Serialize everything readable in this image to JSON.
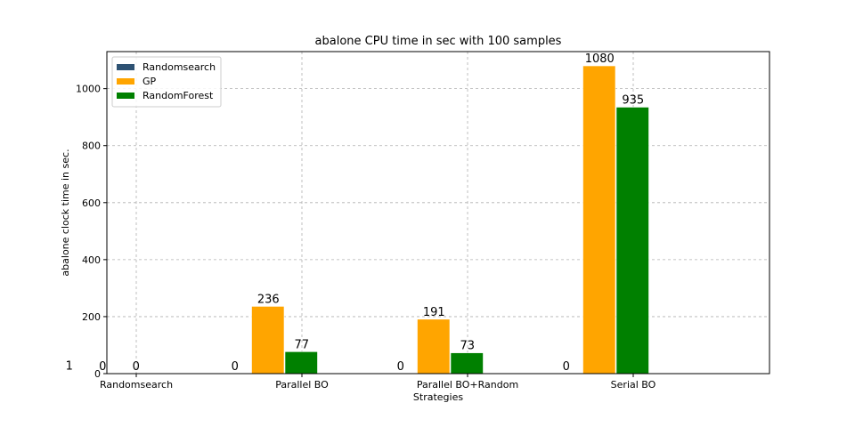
{
  "chart_data": {
    "type": "bar",
    "title": "abalone CPU time in sec with 100 samples",
    "xlabel": "Strategies",
    "ylabel": "abalone clock time in sec.",
    "ylim": [
      0,
      1130
    ],
    "yticks": [
      0,
      200,
      400,
      600,
      800,
      1000
    ],
    "grid": true,
    "legend_position": "top-left",
    "categories": [
      "Randomsearch",
      "Parallel BO",
      "Parallel BO+Random",
      "Serial BO"
    ],
    "series": [
      {
        "name": "Randomsearch",
        "color": "#2e5273",
        "values": [
          1,
          0,
          0,
          0
        ],
        "labels": [
          "1",
          "0",
          "0",
          "0"
        ]
      },
      {
        "name": "GP",
        "color": "#ffa500",
        "values": [
          0,
          236,
          191,
          1080
        ],
        "labels": [
          "0",
          "236",
          "191",
          "1080"
        ]
      },
      {
        "name": "RandomForest",
        "color": "#008000",
        "values": [
          0,
          77,
          73,
          935
        ],
        "labels": [
          "0",
          "77",
          "73",
          "935"
        ]
      }
    ]
  }
}
